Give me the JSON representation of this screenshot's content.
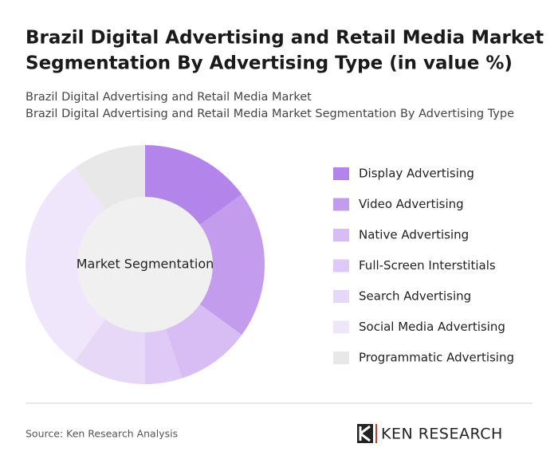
{
  "chart_data": {
    "type": "donut",
    "title_lines": [
      "Brazil Digital Advertising and Retail Media Market",
      "Segmentation By Advertising Type (in value %)"
    ],
    "subtitle_lines": [
      "Brazil Digital Advertising and Retail Media Market",
      "Brazil Digital Advertising and Retail Media Market Segmentation By Advertising Type"
    ],
    "center_label": "Market Segmentation",
    "categories": [
      "Display Advertising",
      "Video Advertising",
      "Native Advertising",
      "Full-Screen Interstitials",
      "Search Advertising",
      "Social Media Advertising",
      "Programmatic Advertising"
    ],
    "values": [
      15,
      20,
      10,
      5,
      10,
      30,
      10
    ],
    "colors": [
      "#b385ea",
      "#c39ced",
      "#d7bdf4",
      "#dfc9f6",
      "#e7d8f8",
      "#efe6fb",
      "#e8e8e8"
    ],
    "source": "Source: Ken Research Analysis",
    "brand": "KEN RESEARCH"
  }
}
